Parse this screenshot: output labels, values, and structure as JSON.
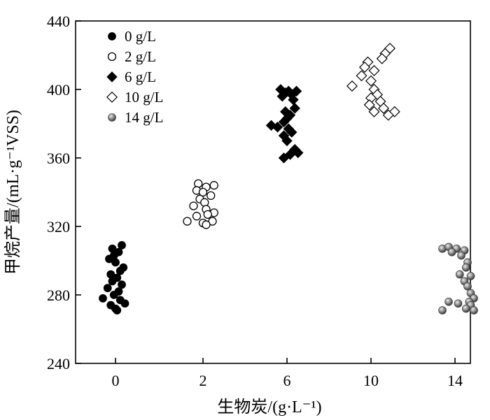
{
  "chart_data": {
    "type": "scatter",
    "xlabel": "生物炭/(g·L⁻¹)",
    "ylabel": "甲烷产量/(mL·g⁻¹VSS)",
    "ylim": [
      240,
      440
    ],
    "yticks": [
      240,
      280,
      320,
      360,
      400,
      440
    ],
    "categories": [
      "0",
      "2",
      "6",
      "10",
      "14"
    ],
    "legend_position": "top-left",
    "grid": false,
    "series": [
      {
        "name": "0 g/L",
        "marker": "filled-circle",
        "category": "0",
        "points": [
          {
            "x": -0.1,
            "y": 307
          },
          {
            "x": 0.2,
            "y": 309
          },
          {
            "x": 0.1,
            "y": 305
          },
          {
            "x": -0.05,
            "y": 303
          },
          {
            "x": -0.2,
            "y": 301
          },
          {
            "x": 0.0,
            "y": 299
          },
          {
            "x": 0.25,
            "y": 296
          },
          {
            "x": 0.15,
            "y": 294
          },
          {
            "x": -0.15,
            "y": 292
          },
          {
            "x": 0.05,
            "y": 290
          },
          {
            "x": -0.1,
            "y": 288
          },
          {
            "x": 0.2,
            "y": 286
          },
          {
            "x": -0.25,
            "y": 284
          },
          {
            "x": 0.1,
            "y": 282
          },
          {
            "x": -0.05,
            "y": 280
          },
          {
            "x": -0.4,
            "y": 278
          },
          {
            "x": 0.15,
            "y": 277
          },
          {
            "x": 0.3,
            "y": 275
          },
          {
            "x": -0.15,
            "y": 274
          },
          {
            "x": 0.0,
            "y": 272
          },
          {
            "x": 0.05,
            "y": 271
          }
        ]
      },
      {
        "name": "2 g/L",
        "marker": "open-circle",
        "category": "2",
        "points": [
          {
            "x": -0.15,
            "y": 345
          },
          {
            "x": 0.35,
            "y": 344
          },
          {
            "x": 0.1,
            "y": 343
          },
          {
            "x": -0.2,
            "y": 341
          },
          {
            "x": 0.0,
            "y": 340
          },
          {
            "x": 0.25,
            "y": 338
          },
          {
            "x": -0.1,
            "y": 336
          },
          {
            "x": 0.05,
            "y": 334
          },
          {
            "x": -0.3,
            "y": 332
          },
          {
            "x": 0.1,
            "y": 330
          },
          {
            "x": 0.35,
            "y": 328
          },
          {
            "x": 0.15,
            "y": 327
          },
          {
            "x": -0.2,
            "y": 326
          },
          {
            "x": -0.5,
            "y": 323
          },
          {
            "x": 0.3,
            "y": 323
          },
          {
            "x": 0.0,
            "y": 322
          },
          {
            "x": 0.1,
            "y": 321
          }
        ]
      },
      {
        "name": "6 g/L",
        "marker": "filled-diamond",
        "category": "6",
        "points": [
          {
            "x": -0.2,
            "y": 400
          },
          {
            "x": 0.05,
            "y": 399
          },
          {
            "x": 0.3,
            "y": 399
          },
          {
            "x": -0.05,
            "y": 398
          },
          {
            "x": 0.15,
            "y": 397
          },
          {
            "x": -0.15,
            "y": 396
          },
          {
            "x": 0.2,
            "y": 394
          },
          {
            "x": 0.25,
            "y": 389
          },
          {
            "x": -0.05,
            "y": 387
          },
          {
            "x": 0.1,
            "y": 385
          },
          {
            "x": 0.0,
            "y": 383
          },
          {
            "x": -0.1,
            "y": 381
          },
          {
            "x": -0.5,
            "y": 379
          },
          {
            "x": -0.3,
            "y": 378
          },
          {
            "x": 0.05,
            "y": 377
          },
          {
            "x": 0.15,
            "y": 375
          },
          {
            "x": -0.1,
            "y": 373
          },
          {
            "x": 0.0,
            "y": 370
          },
          {
            "x": 0.25,
            "y": 365
          },
          {
            "x": 0.35,
            "y": 363
          },
          {
            "x": 0.1,
            "y": 362
          },
          {
            "x": -0.1,
            "y": 360
          }
        ]
      },
      {
        "name": "10 g/L",
        "marker": "open-diamond",
        "category": "10",
        "points": [
          {
            "x": 0.6,
            "y": 424
          },
          {
            "x": 0.45,
            "y": 421
          },
          {
            "x": 0.35,
            "y": 418
          },
          {
            "x": -0.1,
            "y": 416
          },
          {
            "x": -0.2,
            "y": 413
          },
          {
            "x": 0.1,
            "y": 411
          },
          {
            "x": -0.3,
            "y": 408
          },
          {
            "x": 0.0,
            "y": 405
          },
          {
            "x": -0.6,
            "y": 402
          },
          {
            "x": 0.1,
            "y": 400
          },
          {
            "x": 0.2,
            "y": 397
          },
          {
            "x": 0.0,
            "y": 395
          },
          {
            "x": 0.3,
            "y": 393
          },
          {
            "x": -0.05,
            "y": 391
          },
          {
            "x": 0.4,
            "y": 389
          },
          {
            "x": 0.1,
            "y": 387
          },
          {
            "x": 0.75,
            "y": 387
          },
          {
            "x": 0.55,
            "y": 385
          }
        ]
      },
      {
        "name": "14 g/L",
        "marker": "shaded-sphere",
        "category": "14",
        "points": [
          {
            "x": -0.4,
            "y": 307
          },
          {
            "x": -0.2,
            "y": 308
          },
          {
            "x": 0.05,
            "y": 307
          },
          {
            "x": 0.3,
            "y": 306
          },
          {
            "x": -0.1,
            "y": 305
          },
          {
            "x": 0.2,
            "y": 303
          },
          {
            "x": 0.4,
            "y": 299
          },
          {
            "x": 0.35,
            "y": 296
          },
          {
            "x": 0.15,
            "y": 292
          },
          {
            "x": 0.5,
            "y": 291
          },
          {
            "x": 0.3,
            "y": 288
          },
          {
            "x": 0.4,
            "y": 285
          },
          {
            "x": 0.5,
            "y": 281
          },
          {
            "x": 0.6,
            "y": 278
          },
          {
            "x": 0.45,
            "y": 276
          },
          {
            "x": 0.1,
            "y": 275
          },
          {
            "x": 0.5,
            "y": 274
          },
          {
            "x": 0.35,
            "y": 272
          },
          {
            "x": 0.6,
            "y": 271
          },
          {
            "x": -0.4,
            "y": 271
          },
          {
            "x": -0.2,
            "y": 276
          }
        ]
      }
    ]
  }
}
